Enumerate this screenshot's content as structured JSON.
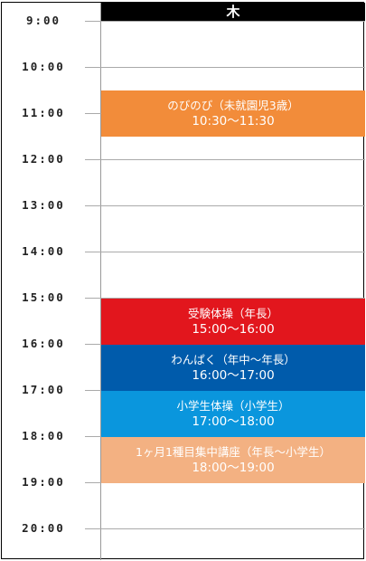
{
  "day": "木",
  "times": [
    "9:00",
    "10:00",
    "11:00",
    "12:00",
    "13:00",
    "14:00",
    "15:00",
    "16:00",
    "17:00",
    "18:00",
    "19:00",
    "20:00"
  ],
  "events": [
    {
      "title": "のびのび（未就園児3歳）",
      "time": "10:30〜11:30",
      "color": "#f28c3a"
    },
    {
      "title": "受験体操（年長）",
      "time": "15:00〜16:00",
      "color": "#e2161d"
    },
    {
      "title": "わんぱく（年中〜年長）",
      "time": "16:00〜17:00",
      "color": "#005bab"
    },
    {
      "title": "小学生体操（小学生）",
      "time": "17:00〜18:00",
      "color": "#0a96dd"
    },
    {
      "title": "1ヶ月1種目集中講座（年長〜小学生）",
      "time": "18:00〜19:00",
      "color": "#f3b182"
    }
  ]
}
